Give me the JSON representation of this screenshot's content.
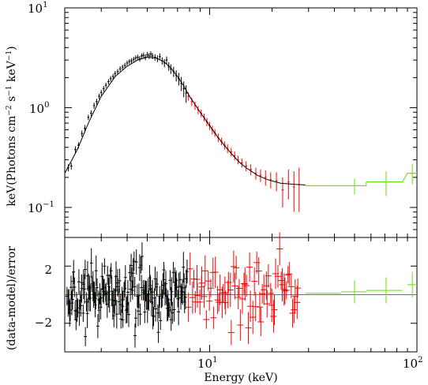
{
  "chart_data": [
    {
      "type": "scatter",
      "panel": "spectrum",
      "ylabel_parts": {
        "base": "keV(Photons cm",
        "e1": "−2",
        "s": " s",
        "e2": "−1",
        "kev": " keV",
        "e3": "−1",
        "close": ")"
      },
      "xscale": "log",
      "yscale": "log",
      "xlim": [
        2,
        100
      ],
      "ylim": [
        0.05,
        10
      ],
      "ytick_labels": [
        {
          "value": 10,
          "base": "10",
          "exp": "1"
        },
        {
          "value": 1,
          "base": "10",
          "exp": "0"
        },
        {
          "value": 0.1,
          "base": "10",
          "exp": "−1"
        }
      ],
      "series": [
        {
          "color": "#000000",
          "points": [
            [
              2.08,
              0.25,
              0.02
            ],
            [
              2.15,
              0.26,
              0.02
            ],
            [
              2.25,
              0.38,
              0.03
            ],
            [
              2.33,
              0.42,
              0.03
            ],
            [
              2.42,
              0.55,
              0.04
            ],
            [
              2.5,
              0.62,
              0.05
            ],
            [
              2.6,
              0.8,
              0.05
            ],
            [
              2.68,
              0.88,
              0.06
            ],
            [
              2.77,
              1.05,
              0.07
            ],
            [
              2.85,
              1.15,
              0.08
            ],
            [
              2.93,
              1.3,
              0.08
            ],
            [
              3.0,
              1.42,
              0.09
            ],
            [
              3.08,
              1.55,
              0.1
            ],
            [
              3.16,
              1.68,
              0.1
            ],
            [
              3.25,
              1.82,
              0.11
            ],
            [
              3.33,
              1.95,
              0.12
            ],
            [
              3.42,
              2.05,
              0.13
            ],
            [
              3.5,
              2.2,
              0.13
            ],
            [
              3.6,
              2.3,
              0.14
            ],
            [
              3.7,
              2.45,
              0.15
            ],
            [
              3.8,
              2.55,
              0.15
            ],
            [
              3.9,
              2.65,
              0.16
            ],
            [
              4.0,
              2.8,
              0.17
            ],
            [
              4.1,
              2.9,
              0.17
            ],
            [
              4.2,
              2.95,
              0.18
            ],
            [
              4.3,
              3.05,
              0.18
            ],
            [
              4.4,
              3.15,
              0.19
            ],
            [
              4.5,
              3.2,
              0.2
            ],
            [
              4.6,
              3.1,
              0.2
            ],
            [
              4.7,
              3.3,
              0.2
            ],
            [
              4.8,
              3.35,
              0.21
            ],
            [
              4.9,
              3.2,
              0.21
            ],
            [
              5.0,
              3.4,
              0.22
            ],
            [
              5.1,
              3.3,
              0.22
            ],
            [
              5.2,
              3.45,
              0.23
            ],
            [
              5.3,
              3.3,
              0.23
            ],
            [
              5.45,
              3.2,
              0.24
            ],
            [
              5.6,
              3.1,
              0.24
            ],
            [
              5.75,
              3.25,
              0.25
            ],
            [
              5.9,
              2.95,
              0.25
            ],
            [
              6.05,
              2.8,
              0.26
            ],
            [
              6.2,
              3.0,
              0.26
            ],
            [
              6.35,
              2.6,
              0.26
            ],
            [
              6.5,
              2.45,
              0.27
            ],
            [
              6.7,
              2.3,
              0.27
            ],
            [
              6.9,
              2.1,
              0.27
            ],
            [
              7.1,
              1.95,
              0.28
            ],
            [
              7.3,
              1.75,
              0.28
            ],
            [
              7.5,
              1.55,
              0.28
            ],
            [
              7.7,
              1.4,
              0.28
            ]
          ]
        },
        {
          "color": "#ff0000",
          "points": [
            [
              7.9,
              1.3,
              0.12
            ],
            [
              8.2,
              1.15,
              0.11
            ],
            [
              8.5,
              1.05,
              0.1
            ],
            [
              8.8,
              0.95,
              0.09
            ],
            [
              9.1,
              0.88,
              0.08
            ],
            [
              9.4,
              0.8,
              0.07
            ],
            [
              9.7,
              0.72,
              0.07
            ],
            [
              10.0,
              0.66,
              0.06
            ],
            [
              10.3,
              0.6,
              0.06
            ],
            [
              10.6,
              0.56,
              0.05
            ],
            [
              11.0,
              0.5,
              0.05
            ],
            [
              11.4,
              0.46,
              0.04
            ],
            [
              11.8,
              0.42,
              0.04
            ],
            [
              12.2,
              0.39,
              0.04
            ],
            [
              12.7,
              0.36,
              0.035
            ],
            [
              13.2,
              0.33,
              0.035
            ],
            [
              13.7,
              0.3,
              0.03
            ],
            [
              14.3,
              0.28,
              0.03
            ],
            [
              15.0,
              0.26,
              0.03
            ],
            [
              15.8,
              0.24,
              0.03
            ],
            [
              16.7,
              0.22,
              0.03
            ],
            [
              17.6,
              0.21,
              0.03
            ],
            [
              18.6,
              0.2,
              0.035
            ],
            [
              19.7,
              0.19,
              0.035
            ],
            [
              21.0,
              0.185,
              0.04
            ],
            [
              22.5,
              0.15,
              0.05
            ],
            [
              24.0,
              0.18,
              0.06
            ],
            [
              25.5,
              0.16,
              0.07
            ],
            [
              27.0,
              0.17,
              0.08
            ]
          ]
        },
        {
          "color": "#66dd11",
          "points": [
            [
              36.0,
              0.165,
              0.0,
              29.0,
              43.0
            ],
            [
              50.0,
              0.165,
              0.03,
              43.0,
              57.0
            ],
            [
              71.0,
              0.18,
              0.05,
              57.0,
              85.0
            ],
            [
              95.0,
              0.22,
              0.05,
              90.0,
              100.0
            ]
          ]
        }
      ],
      "model": [
        [
          2.0,
          0.22
        ],
        [
          2.3,
          0.38
        ],
        [
          2.6,
          0.7
        ],
        [
          3.0,
          1.3
        ],
        [
          3.5,
          2.05
        ],
        [
          4.0,
          2.6
        ],
        [
          4.5,
          3.0
        ],
        [
          5.0,
          3.2
        ],
        [
          5.5,
          3.15
        ],
        [
          6.0,
          2.9
        ],
        [
          6.5,
          2.5
        ],
        [
          7.0,
          2.05
        ],
        [
          7.5,
          1.65
        ],
        [
          8.0,
          1.3
        ],
        [
          9.0,
          0.9
        ],
        [
          10.0,
          0.66
        ],
        [
          11.0,
          0.5
        ],
        [
          12.0,
          0.4
        ],
        [
          13.0,
          0.33
        ],
        [
          14.0,
          0.28
        ],
        [
          15.0,
          0.25
        ],
        [
          17.0,
          0.21
        ],
        [
          19.0,
          0.19
        ],
        [
          22.0,
          0.175
        ],
        [
          26.0,
          0.17
        ],
        [
          29.0,
          0.168
        ]
      ]
    },
    {
      "type": "scatter",
      "panel": "residuals",
      "xlabel": "Energy (keV)",
      "ylabel": "(data-model)/error",
      "xscale": "log",
      "xlim": [
        2,
        100
      ],
      "ylim": [
        -4,
        4
      ],
      "ytick_labels": [
        {
          "value": 2,
          "label": "2"
        },
        {
          "value": -2,
          "label": "−2"
        }
      ],
      "xtick_labels": [
        {
          "value": 10,
          "base": "10",
          "exp": "1"
        },
        {
          "value": 100,
          "base": "10",
          "exp": "2"
        }
      ],
      "reference_line": {
        "value": 0,
        "color": "#22aa22"
      },
      "series": [
        {
          "color": "#000000",
          "xrange": [
            2.05,
            7.8
          ],
          "count": 170,
          "scatter": 1.1,
          "err": 0.9,
          "seed": 7
        },
        {
          "color": "#ff0000",
          "xrange": [
            7.9,
            27.0
          ],
          "count": 75,
          "scatter": 1.2,
          "err": 1.0,
          "seed": 19
        },
        {
          "color": "#66dd11",
          "points": [
            [
              36.0,
              0.1,
              0.0,
              29.0,
              43.0
            ],
            [
              50.0,
              0.2,
              0.8,
              43.0,
              57.0
            ],
            [
              71.0,
              0.3,
              0.9,
              57.0,
              85.0
            ],
            [
              95.0,
              0.7,
              0.9,
              90.0,
              100.0
            ]
          ]
        }
      ]
    }
  ]
}
